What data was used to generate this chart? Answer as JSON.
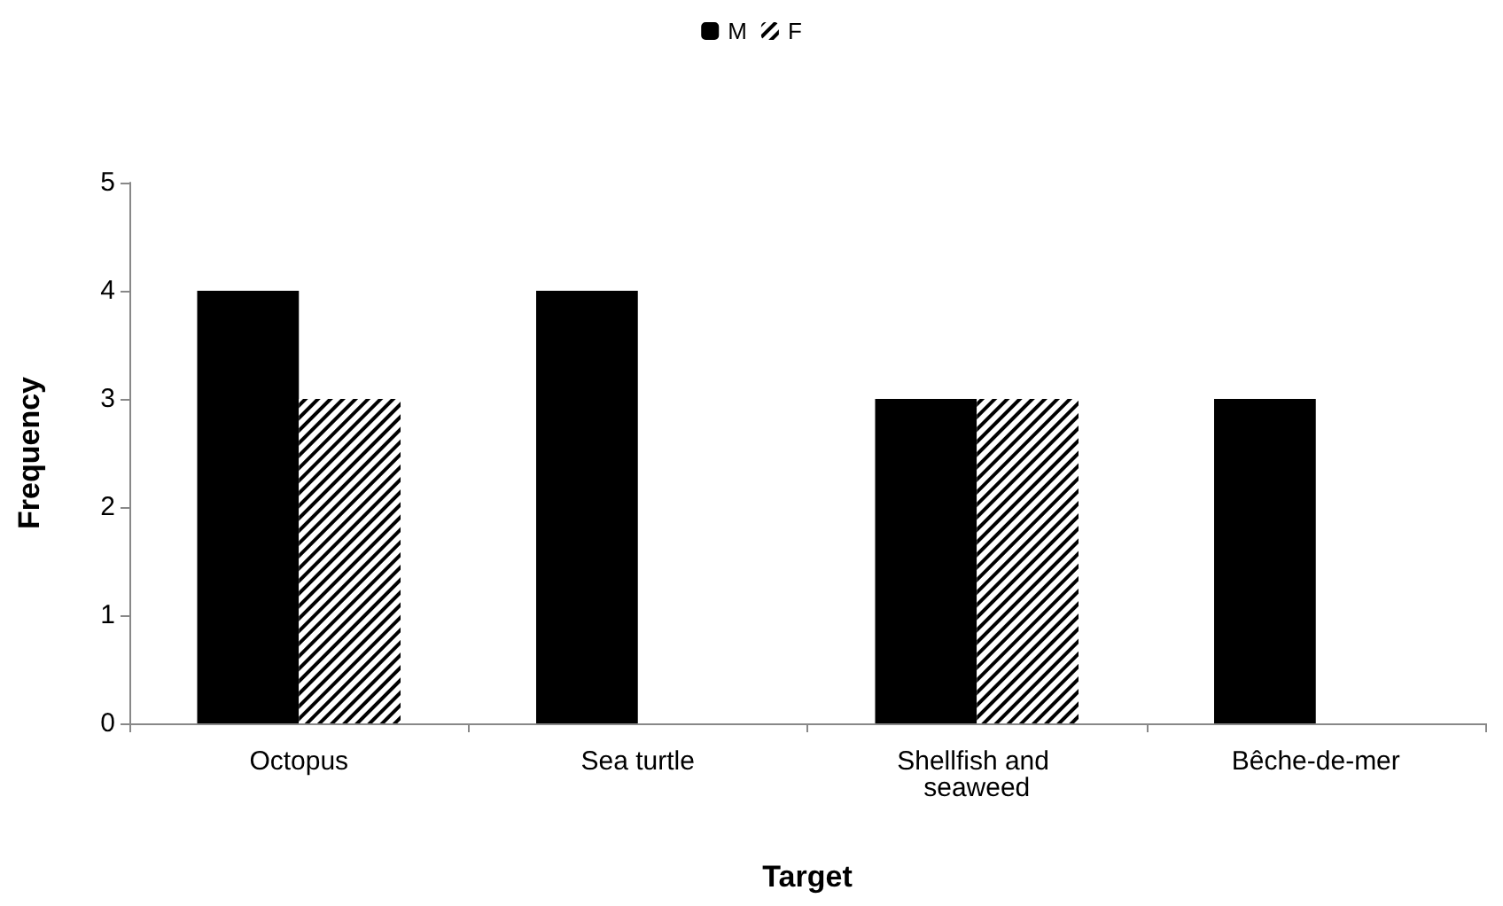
{
  "chart_data": {
    "type": "bar",
    "xlabel": "Target",
    "ylabel": "Frequency",
    "categories": [
      "Octopus",
      "Sea turtle",
      "Shellfish and seaweed",
      "Bêche-de-mer"
    ],
    "series": [
      {
        "name": "M",
        "color": "#000000",
        "values": [
          4,
          4,
          3,
          3
        ]
      },
      {
        "name": "F",
        "color": "#000000",
        "values": [
          3,
          null,
          3,
          null
        ]
      }
    ],
    "ylim": [
      0,
      5
    ],
    "yticks": [
      0,
      1,
      2,
      3,
      4,
      5
    ],
    "grid": false,
    "legend": "top"
  }
}
